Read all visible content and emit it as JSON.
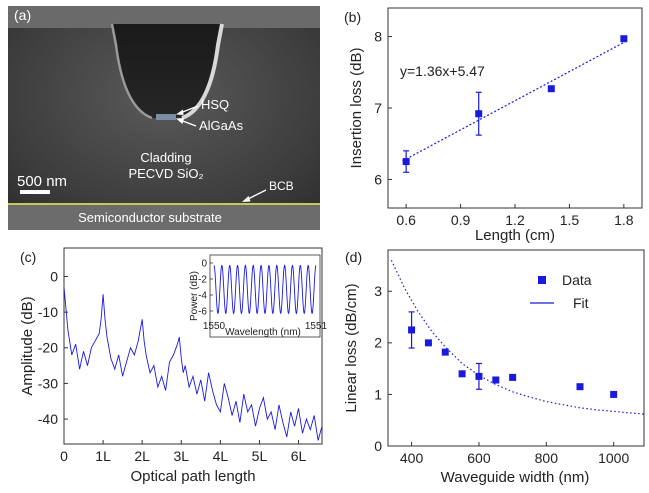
{
  "panels": {
    "a": {
      "label": "(a)",
      "hsq_label": "HSQ",
      "algaas_label": "AlGaAs",
      "cladding_label": "Cladding",
      "pecvd_label": "PECVD SiO₂",
      "scale_label": "500 nm",
      "bcb_label": "BCB",
      "substrate_label": "Semiconductor substrate"
    }
  },
  "chart_data": [
    {
      "panel": "(b)",
      "type": "scatter",
      "xlabel": "Length (cm)",
      "ylabel": "Insertion loss (dB)",
      "xlim": [
        0.5,
        1.9
      ],
      "ylim": [
        5.6,
        8.4
      ],
      "xticks": [
        0.6,
        0.9,
        1.2,
        1.5,
        1.8
      ],
      "xtick_labels": [
        "0.6",
        "0.9",
        "1.2",
        "1.5",
        "1.8"
      ],
      "yticks": [
        6,
        7,
        8
      ],
      "ytick_labels": [
        "6",
        "7",
        "8"
      ],
      "annotation": "y=1.36x+5.47",
      "fit": {
        "slope": 1.36,
        "intercept": 5.47,
        "x_range": [
          0.6,
          1.8
        ]
      },
      "points": [
        {
          "x": 0.6,
          "y": 6.25,
          "err": 0.15
        },
        {
          "x": 1.0,
          "y": 6.92,
          "err": 0.3
        },
        {
          "x": 1.4,
          "y": 7.27,
          "err": 0.0
        },
        {
          "x": 1.8,
          "y": 7.97,
          "err": 0.0
        }
      ],
      "color": "#1a1adc"
    },
    {
      "panel": "(c)",
      "type": "line",
      "xlabel": "Optical path length",
      "ylabel": "Amplitude (dB)",
      "xlim": [
        0,
        6.6
      ],
      "ylim": [
        -47,
        8
      ],
      "xticks": [
        0,
        1,
        2,
        3,
        4,
        5,
        6
      ],
      "xtick_labels": [
        "0",
        "1L",
        "2L",
        "3L",
        "4L",
        "5L",
        "6L"
      ],
      "yticks": [
        0,
        -10,
        -20,
        -30,
        -40
      ],
      "ytick_labels": [
        "0",
        "-10",
        "-20",
        "-30",
        "-40"
      ],
      "series": [
        {
          "x": [
            0.0,
            0.1,
            0.2,
            0.3,
            0.4,
            0.5,
            0.6,
            0.7,
            0.8,
            0.9,
            0.95,
            1.0,
            1.05,
            1.1,
            1.2,
            1.3,
            1.4,
            1.5,
            1.6,
            1.7,
            1.8,
            1.9,
            1.95,
            2.0,
            2.05,
            2.1,
            2.2,
            2.3,
            2.4,
            2.5,
            2.6,
            2.7,
            2.8,
            2.9,
            2.95,
            3.0,
            3.05,
            3.1,
            3.2,
            3.3,
            3.4,
            3.5,
            3.6,
            3.7,
            3.8,
            3.9,
            4.0,
            4.1,
            4.2,
            4.3,
            4.4,
            4.5,
            4.6,
            4.7,
            4.8,
            4.9,
            5.0,
            5.1,
            5.2,
            5.3,
            5.4,
            5.5,
            5.6,
            5.7,
            5.8,
            5.9,
            6.0,
            6.1,
            6.2,
            6.3,
            6.4,
            6.5,
            6.6
          ],
          "y": [
            -3,
            -15,
            -22,
            -19,
            -26,
            -21,
            -25,
            -20,
            -18,
            -16,
            -12,
            -5,
            -12,
            -17,
            -23,
            -26,
            -22,
            -28,
            -24,
            -20,
            -22,
            -18,
            -15,
            -12,
            -18,
            -22,
            -27,
            -25,
            -31,
            -28,
            -32,
            -24,
            -22,
            -19,
            -17,
            -23,
            -27,
            -25,
            -31,
            -28,
            -33,
            -29,
            -35,
            -27,
            -32,
            -36,
            -38,
            -30,
            -34,
            -39,
            -35,
            -41,
            -33,
            -38,
            -36,
            -42,
            -37,
            -34,
            -40,
            -38,
            -43,
            -36,
            -41,
            -45,
            -38,
            -42,
            -37,
            -44,
            -40,
            -43,
            -39,
            -46,
            -42
          ]
        }
      ],
      "color": "#1a1adc",
      "inset": {
        "type": "line",
        "xlabel": "Wavelength (nm)",
        "ylabel": "Power (dB)",
        "xlim": [
          1550,
          1551
        ],
        "ylim": [
          -7,
          1
        ],
        "xticks": [
          1550,
          1551
        ],
        "xtick_labels": [
          "1550",
          "1551"
        ],
        "yticks": [
          0,
          -2,
          -4,
          -6
        ],
        "ytick_labels": [
          "0",
          "-2",
          "-4",
          "-6"
        ],
        "fringe_periods": 13,
        "fringe_max": -0.3,
        "fringe_min": -6.3
      }
    },
    {
      "panel": "(d)",
      "type": "scatter",
      "xlabel": "Waveguide width (nm)",
      "ylabel": "Linear loss (dB/cm)",
      "xlim": [
        330,
        1090
      ],
      "ylim": [
        0,
        3.8
      ],
      "xticks": [
        400,
        600,
        800,
        1000
      ],
      "xtick_labels": [
        "400",
        "600",
        "800",
        "1000"
      ],
      "yticks": [
        0,
        1,
        2,
        3
      ],
      "ytick_labels": [
        "0",
        "1",
        "2",
        "3"
      ],
      "legend_position": "top-right",
      "series": [
        {
          "name": "Data",
          "points": [
            {
              "x": 400,
              "y": 2.25,
              "err": 0.35
            },
            {
              "x": 450,
              "y": 2.0,
              "err": 0.0
            },
            {
              "x": 500,
              "y": 1.82,
              "err": 0.0
            },
            {
              "x": 550,
              "y": 1.4,
              "err": 0.0
            },
            {
              "x": 600,
              "y": 1.35,
              "err": 0.25
            },
            {
              "x": 650,
              "y": 1.28,
              "err": 0.0
            },
            {
              "x": 700,
              "y": 1.33,
              "err": 0.0
            },
            {
              "x": 900,
              "y": 1.15,
              "err": 0.0
            },
            {
              "x": 1000,
              "y": 1.0,
              "err": 0.0
            }
          ]
        },
        {
          "name": "Fit",
          "x": [
            340,
            380,
            420,
            460,
            500,
            550,
            600,
            650,
            700,
            750,
            800,
            850,
            900,
            950,
            1000,
            1050,
            1090
          ],
          "y": [
            3.6,
            3.05,
            2.6,
            2.22,
            1.92,
            1.6,
            1.37,
            1.19,
            1.05,
            0.95,
            0.86,
            0.8,
            0.74,
            0.7,
            0.67,
            0.64,
            0.62
          ]
        }
      ],
      "color": "#1a1adc"
    }
  ]
}
